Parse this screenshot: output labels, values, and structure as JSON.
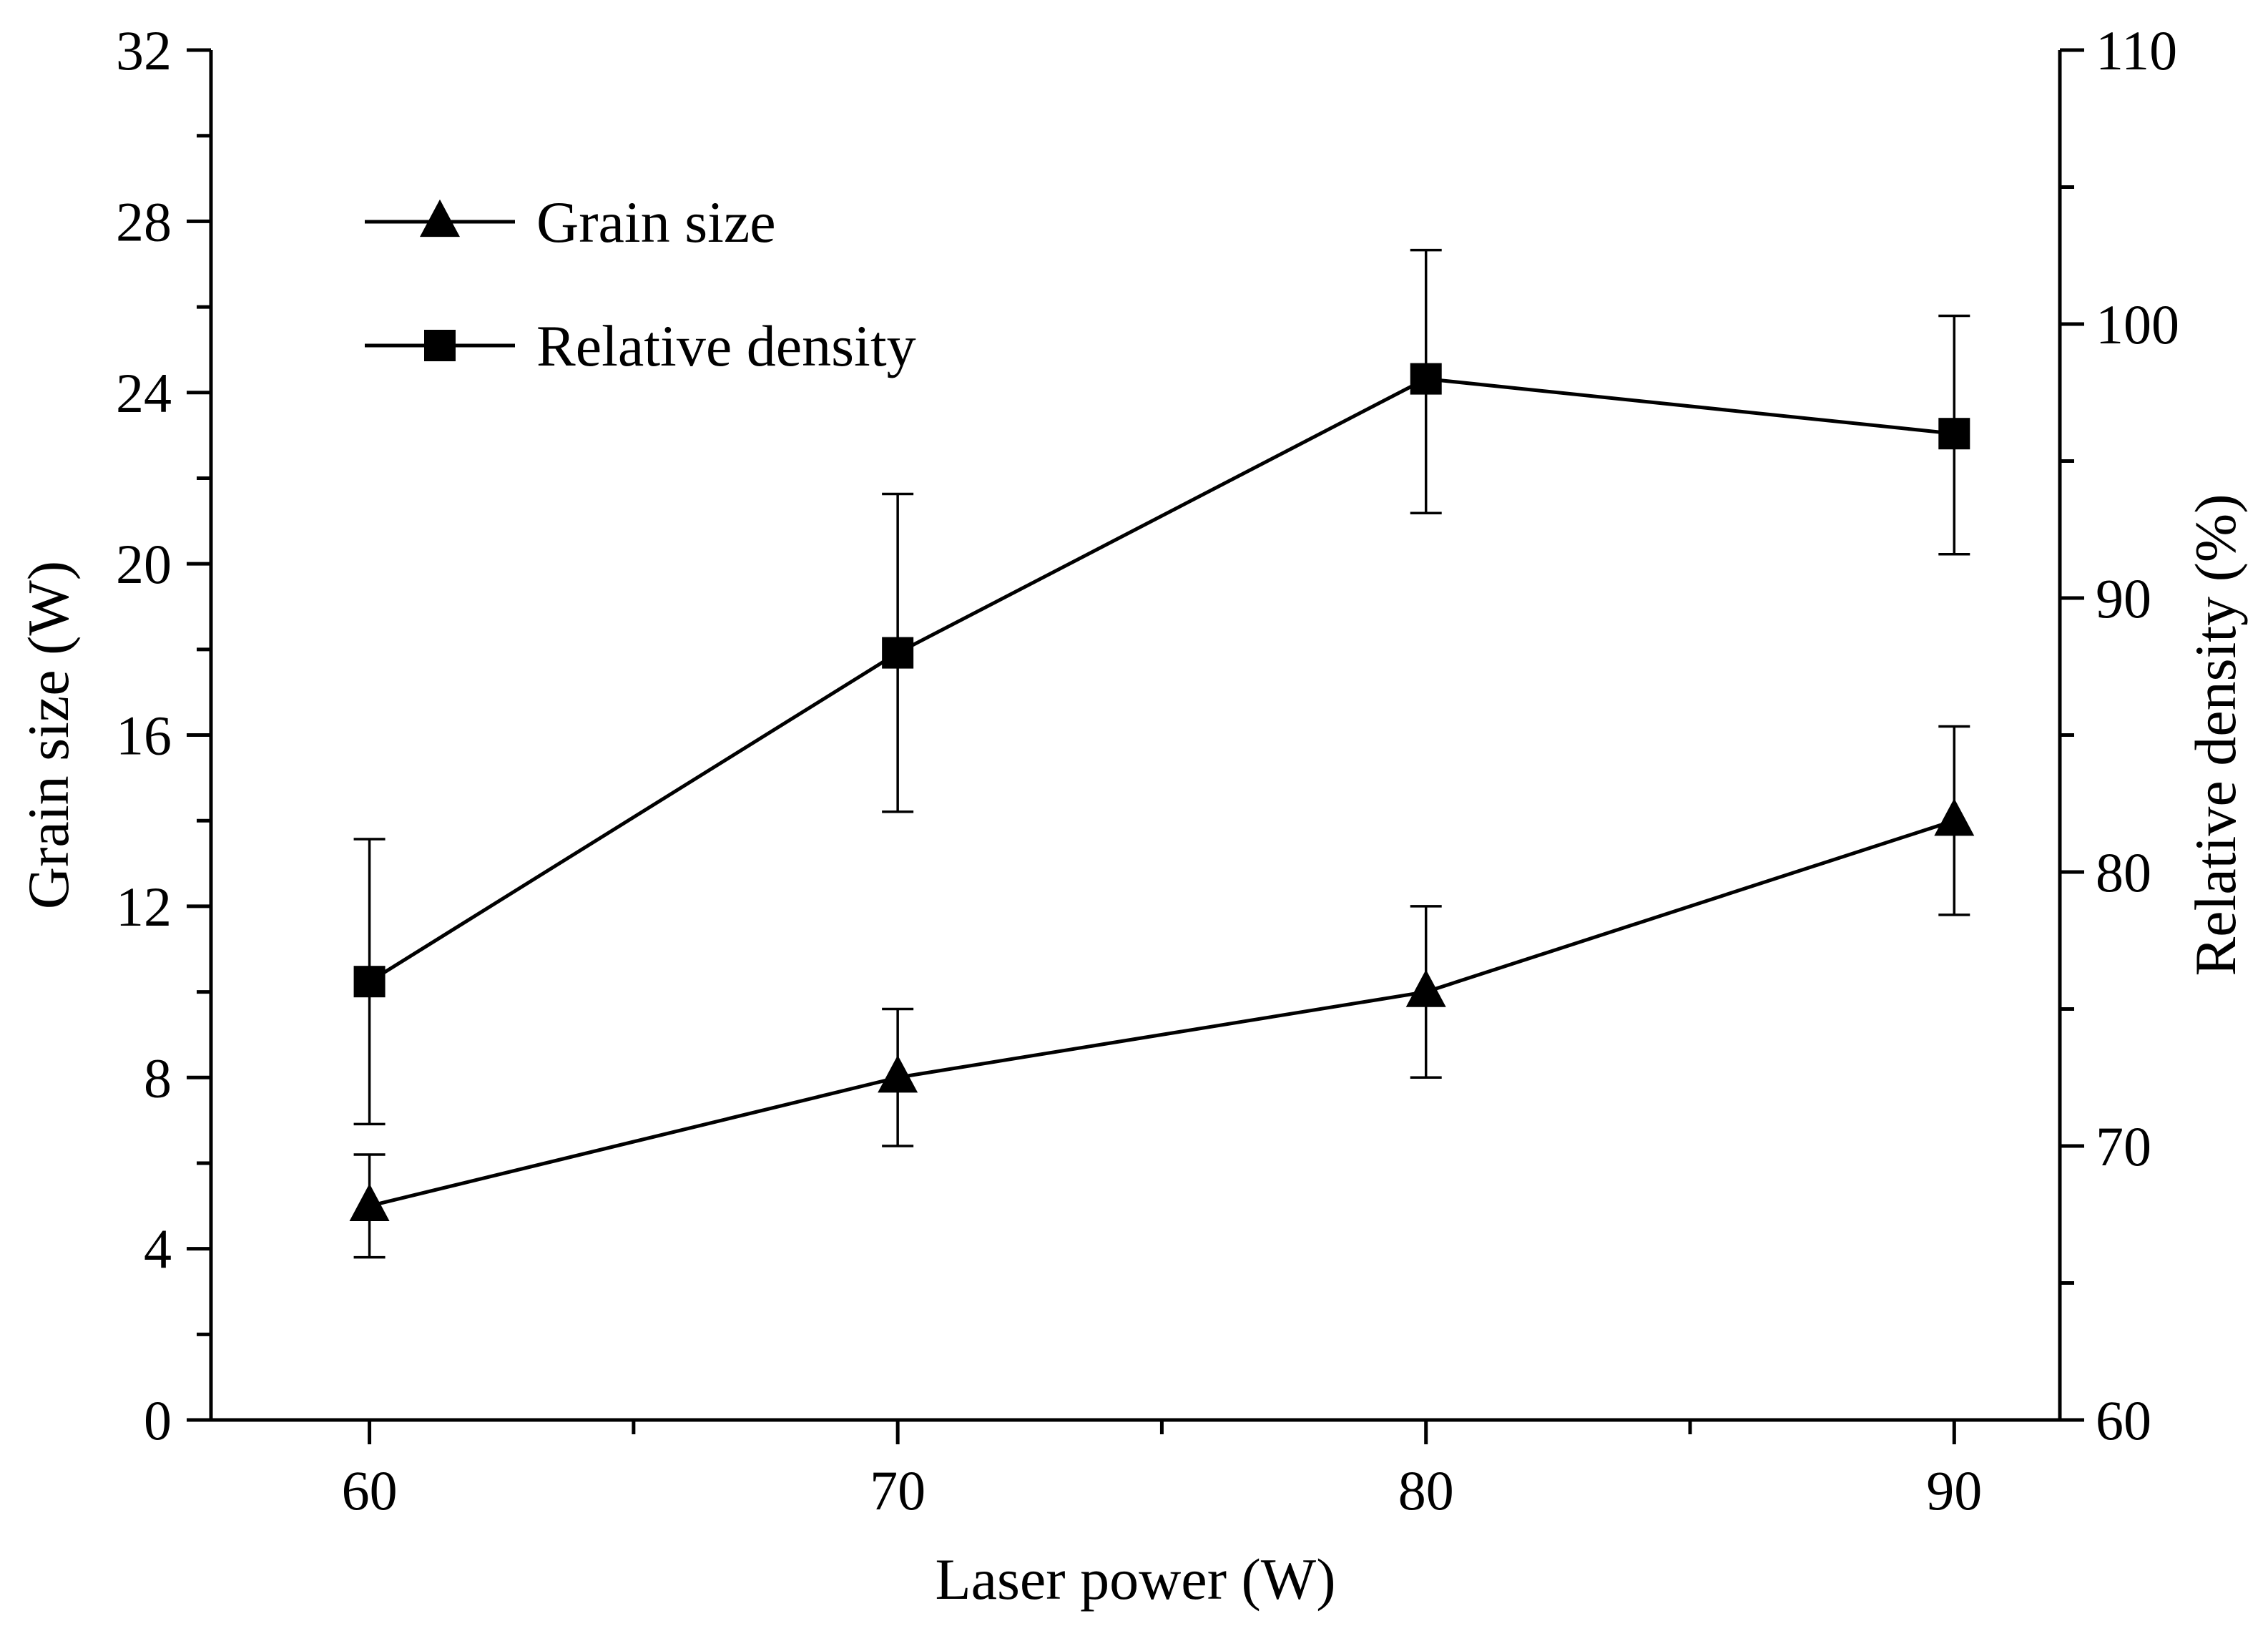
{
  "chart_data": {
    "type": "line",
    "title": "",
    "xlabel": "Laser power (W)",
    "ylabel_left": "Grain size (W)",
    "ylabel_right": "Relative density (%)",
    "x_ticks": [
      "60",
      "70",
      "80",
      "90"
    ],
    "xlim": [
      57,
      92
    ],
    "ylim_left": [
      0,
      32
    ],
    "ylim_right": [
      60,
      110
    ],
    "y_left_ticks": [
      "0",
      "4",
      "8",
      "12",
      "16",
      "20",
      "24",
      "28",
      "32"
    ],
    "y_right_ticks": [
      "60",
      "70",
      "80",
      "90",
      "100",
      "110"
    ],
    "grid": false,
    "legend_position": "top-left",
    "legend": [
      {
        "label": "Grain size",
        "marker": "triangle"
      },
      {
        "label": "Relative density",
        "marker": "square"
      }
    ],
    "series": [
      {
        "name": "Grain size",
        "axis": "left",
        "marker": "triangle",
        "x": [
          60,
          70,
          80,
          90
        ],
        "y": [
          5.0,
          8.0,
          10.0,
          14.0
        ],
        "error_low": [
          3.8,
          6.4,
          8.0,
          11.8
        ],
        "error_high": [
          6.2,
          9.6,
          12.0,
          16.2
        ]
      },
      {
        "name": "Relative density",
        "axis": "right",
        "marker": "square",
        "x": [
          60,
          70,
          80,
          90
        ],
        "y": [
          76.0,
          88.0,
          98.0,
          96.0
        ],
        "error_low": [
          70.8,
          82.2,
          93.1,
          91.6
        ],
        "error_high": [
          81.2,
          93.8,
          102.7,
          100.3
        ]
      }
    ]
  }
}
